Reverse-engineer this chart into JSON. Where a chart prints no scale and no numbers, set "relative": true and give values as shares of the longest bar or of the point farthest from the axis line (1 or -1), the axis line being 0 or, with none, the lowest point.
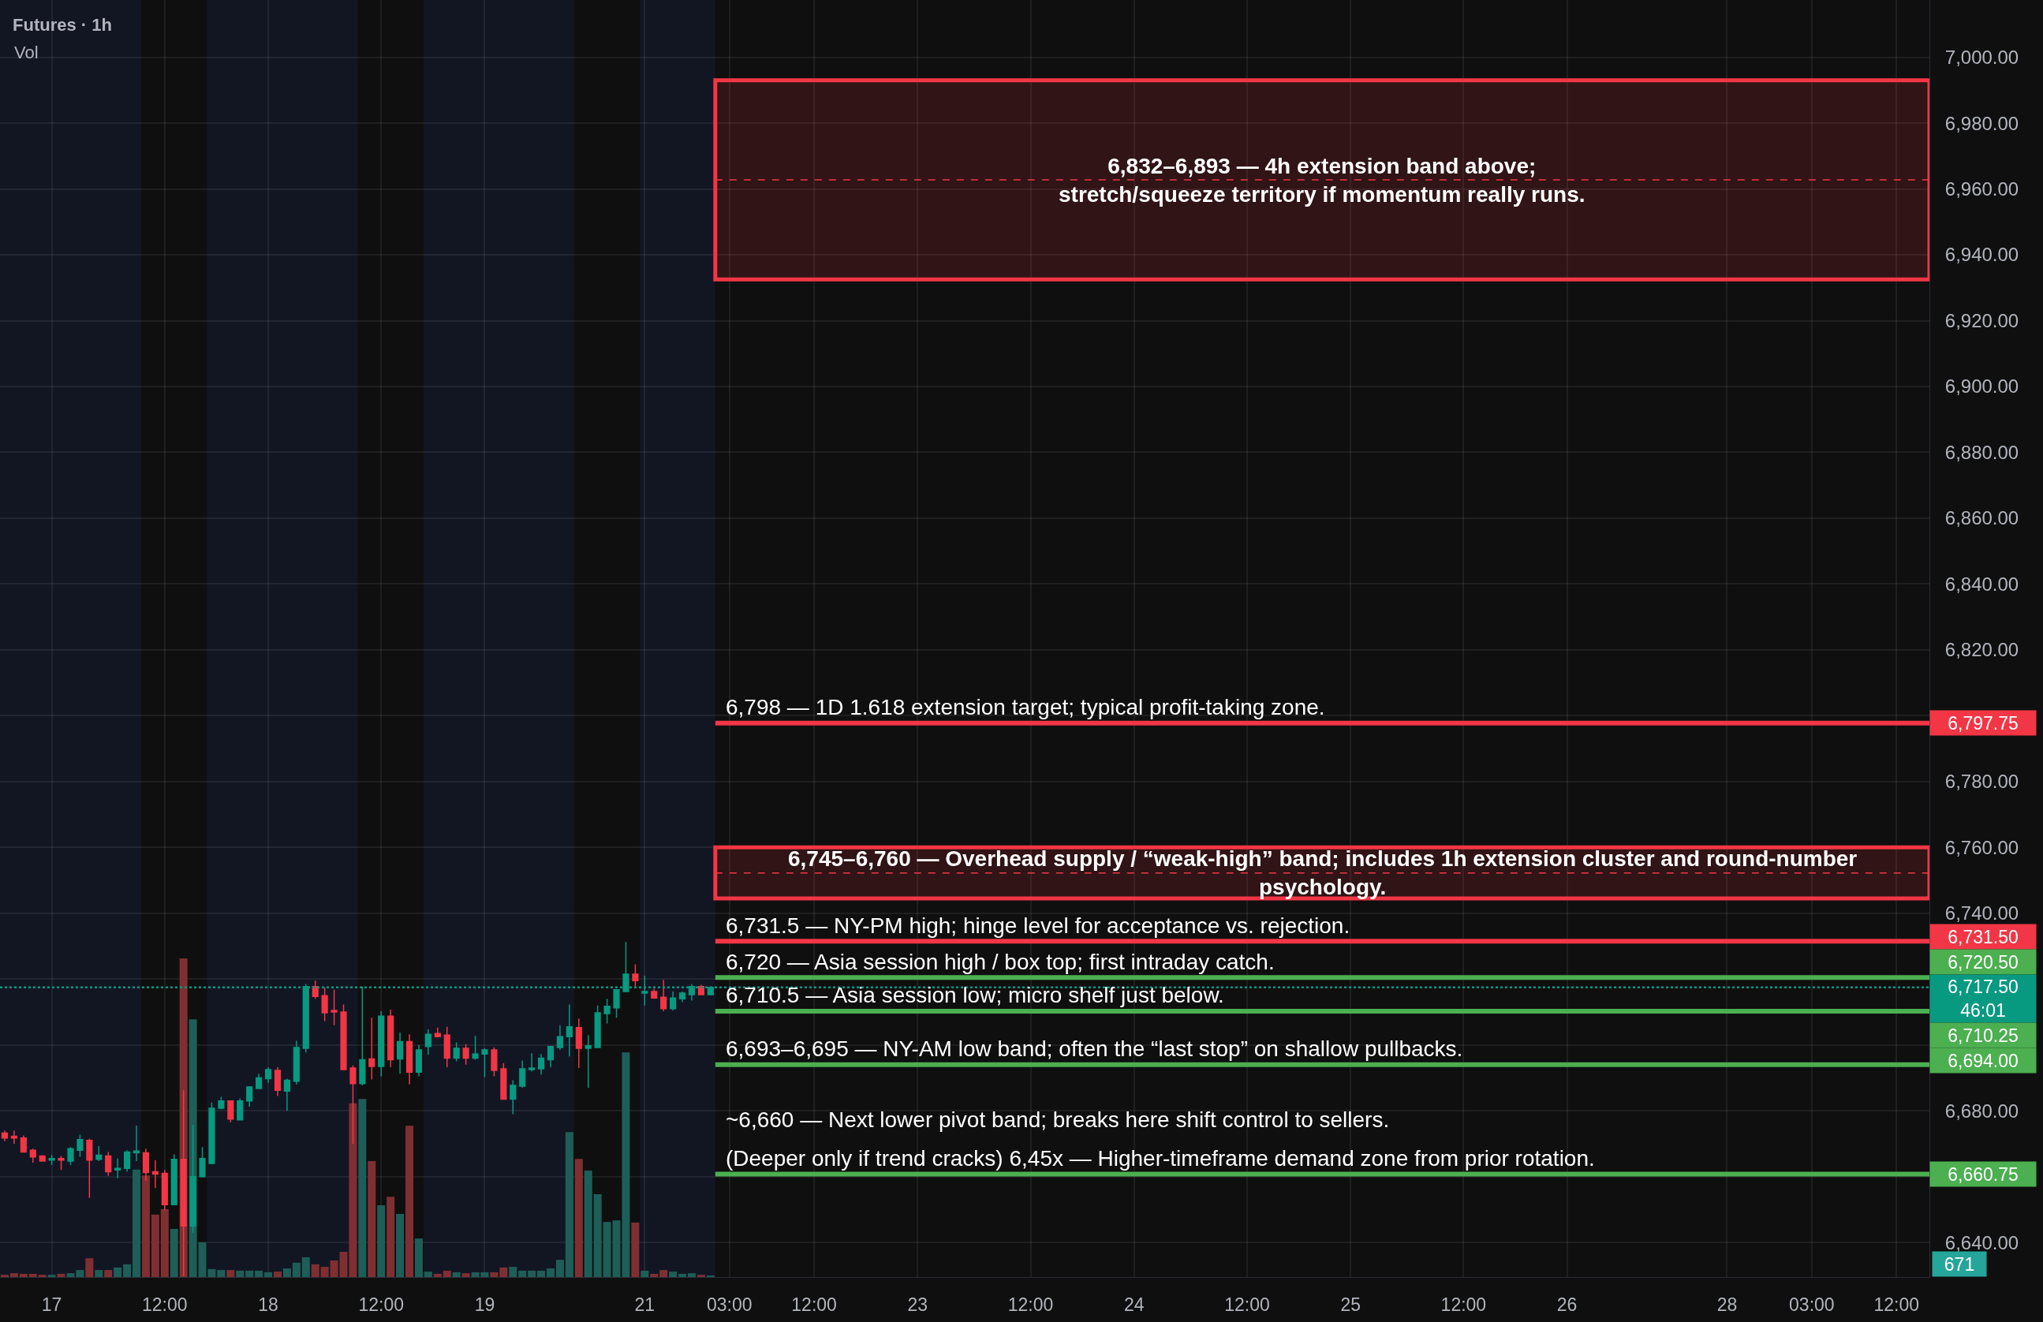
{
  "chart_data": [
    {
      "type": "candlestick",
      "title": "Futures · 1h",
      "categories": [
        null,
        null,
        null,
        null,
        null,
        "17",
        null,
        null,
        null,
        null,
        null,
        null,
        null,
        null,
        null,
        null,
        null,
        "12:00",
        null,
        null,
        null,
        null,
        null,
        null,
        null,
        null,
        null,
        null,
        "18",
        null,
        null,
        null,
        null,
        null,
        null,
        null,
        null,
        null,
        null,
        null,
        "12:00",
        null,
        null,
        null,
        null,
        null,
        null,
        null,
        null,
        null,
        null,
        "19",
        null,
        null,
        null,
        null,
        null,
        null,
        null,
        null,
        null,
        null,
        null,
        null,
        null,
        null,
        null,
        null,
        "21",
        null,
        null,
        null,
        null,
        null,
        null,
        null,
        null,
        "03:00",
        null,
        null,
        null,
        null,
        null,
        null,
        null,
        null,
        "12:00",
        null,
        null,
        null,
        null,
        null,
        null,
        null,
        null,
        null,
        null,
        "23",
        null,
        null,
        null,
        null,
        null,
        null,
        null,
        null,
        null,
        null,
        null,
        "12:00",
        null,
        null,
        null,
        null,
        null,
        null,
        null,
        null,
        null,
        null,
        "24",
        null,
        null,
        null,
        null,
        null,
        null,
        null,
        null,
        null,
        null,
        null,
        "12:00",
        null,
        null,
        null,
        null,
        null,
        null,
        null,
        null,
        null,
        null,
        "25",
        null,
        null,
        null,
        null,
        null,
        null,
        null,
        null,
        null,
        null,
        null,
        "12:00",
        null,
        null,
        null,
        null,
        null,
        null,
        null,
        null,
        null,
        null,
        "26",
        null,
        null,
        null,
        null,
        null,
        null,
        null,
        null,
        null,
        null,
        null,
        null,
        null,
        null,
        null,
        null,
        "28",
        null,
        null,
        null,
        null,
        null,
        null,
        null,
        null,
        "03:00",
        null,
        null,
        null,
        null,
        null,
        null,
        null,
        null,
        "12:00",
        null,
        null,
        null
      ],
      "ohlc": [
        [
          6673.25,
          6674,
          6670.75,
          6671.75
        ],
        [
          6672.25,
          6674,
          6670,
          6671.75
        ],
        [
          6671.75,
          6672.5,
          6667.5,
          6667.5
        ],
        [
          6668,
          6668.5,
          6664.25,
          6666
        ],
        [
          6666.25,
          6666.5,
          6664.75,
          6664.75
        ],
        [
          6665,
          6666.5,
          6663.5,
          6665.5
        ],
        [
          6665.5,
          6666.25,
          6662,
          6665
        ],
        [
          6664.75,
          6669,
          6663.5,
          6668.5
        ],
        [
          6668,
          6672.75,
          6666,
          6671.25
        ],
        [
          6671,
          6671.5,
          6653.5,
          6665
        ],
        [
          6665.25,
          6669.25,
          6664.75,
          6666.5
        ],
        [
          6666.25,
          6667.5,
          6660.25,
          6661.5
        ],
        [
          6662,
          6665.5,
          6659.5,
          6662.5
        ],
        [
          6662.5,
          6668,
          6661.5,
          6667.5
        ],
        [
          6667.25,
          6675.5,
          6664.75,
          6667.75
        ],
        [
          6667.25,
          6668.5,
          6658.75,
          6661.25
        ],
        [
          6661.5,
          6665,
          6656.5,
          6660.75
        ],
        [
          6661,
          6662,
          6649.75,
          6651.5
        ],
        [
          6651.5,
          6666.75,
          6651.5,
          6665.25
        ],
        [
          6665.25,
          6686.25,
          6629.75,
          6645
        ],
        [
          6645,
          6675.75,
          6643,
          6660
        ],
        [
          6660,
          6669,
          6659.75,
          6665.5
        ],
        [
          6664,
          6682.5,
          6663.75,
          6680.75
        ],
        [
          6680.75,
          6684.25,
          6680.5,
          6683
        ],
        [
          6683,
          6683,
          6676.5,
          6677.5
        ],
        [
          6677.25,
          6683.75,
          6677.25,
          6683
        ],
        [
          6683,
          6687.5,
          6681.25,
          6687.25
        ],
        [
          6686.75,
          6691.25,
          6686.75,
          6690
        ],
        [
          6689.75,
          6693.25,
          6688.5,
          6692.5
        ],
        [
          6692.25,
          6693.25,
          6684.5,
          6686.25
        ],
        [
          6686,
          6689.75,
          6680,
          6689.25
        ],
        [
          6689,
          6701.25,
          6688,
          6699.25
        ],
        [
          6699,
          6718.5,
          6697.75,
          6717.75
        ],
        [
          6717.75,
          6719.5,
          6714,
          6714.75
        ],
        [
          6715,
          6717.5,
          6707.25,
          6709.75
        ],
        [
          6710.5,
          6716.75,
          6706,
          6710
        ],
        [
          6710,
          6712.25,
          6692.5,
          6692.5
        ],
        [
          6693,
          6693.75,
          6670,
          6688.25
        ],
        [
          6688.25,
          6717.75,
          6687.75,
          6695.5
        ],
        [
          6695.75,
          6708.25,
          6689.5,
          6693.5
        ],
        [
          6693.5,
          6710.25,
          6690.5,
          6708.75
        ],
        [
          6708.75,
          6710.75,
          6693.25,
          6695.5
        ],
        [
          6695.75,
          6703.75,
          6691.25,
          6701
        ],
        [
          6701,
          6703.25,
          6688,
          6691.75
        ],
        [
          6691.75,
          6700,
          6690.5,
          6698.5
        ],
        [
          6699.5,
          6704.75,
          6697,
          6703.25
        ],
        [
          6703.5,
          6705.25,
          6702.5,
          6702.5
        ],
        [
          6703,
          6705.5,
          6693.25,
          6696
        ],
        [
          6696,
          6700.75,
          6695,
          6699
        ],
        [
          6699,
          6700.25,
          6694,
          6696
        ],
        [
          6696,
          6702.75,
          6695.5,
          6697.25
        ],
        [
          6697.25,
          6699,
          6690.25,
          6698.5
        ],
        [
          6698.5,
          6699.25,
          6690.5,
          6692.25
        ],
        [
          6692.75,
          6694.5,
          6683.5,
          6683.5
        ],
        [
          6683.5,
          6689.25,
          6679,
          6687.75
        ],
        [
          6687.5,
          6695.25,
          6687,
          6692.75
        ],
        [
          6692.5,
          6697.5,
          6692,
          6693
        ],
        [
          6692.75,
          6697.25,
          6691,
          6696
        ],
        [
          6695.5,
          6699.75,
          6693.25,
          6699.5
        ],
        [
          6699.25,
          6706,
          6698.5,
          6702.5
        ],
        [
          6702.5,
          6712.25,
          6696.5,
          6705.5
        ],
        [
          6705.25,
          6708,
          6693,
          6699
        ],
        [
          6699,
          6703,
          6687,
          6699.75
        ],
        [
          6699.25,
          6712,
          6699.25,
          6709.75
        ],
        [
          6709.5,
          6714,
          6706.5,
          6711.75
        ],
        [
          6711.25,
          6716.75,
          6708.25,
          6716.75
        ],
        [
          6716.25,
          6731.25,
          6716,
          6721.5
        ],
        [
          6721.5,
          6724.5,
          6717.75,
          6719.5
        ],
        [
          6715.75,
          6721,
          6712,
          6716.25
        ],
        [
          6716.25,
          6717,
          6714,
          6714.25
        ],
        [
          6714.5,
          6719.75,
          6710.25,
          6711
        ],
        [
          6711,
          6716.25,
          6710.5,
          6714.25
        ],
        [
          6714,
          6716.25,
          6713,
          6715.75
        ],
        [
          6715.25,
          6718.5,
          6713.5,
          6717.75
        ],
        [
          6717.75,
          6718.25,
          6715.25,
          6715.25
        ],
        [
          6715.25,
          6717.5,
          6715.25,
          6717.5
        ],
        null,
        null,
        null,
        null,
        null,
        null,
        null,
        null,
        null,
        null,
        null,
        null,
        null,
        null,
        null,
        null,
        null,
        null,
        null,
        null,
        null,
        null,
        null,
        null,
        null,
        null,
        null,
        null,
        null,
        null,
        null,
        null,
        null,
        null,
        null,
        null,
        null,
        null,
        null,
        null,
        null,
        null,
        null,
        null,
        null,
        null,
        null,
        null,
        null,
        null,
        null,
        null,
        null,
        null,
        null,
        null,
        null,
        null,
        null,
        null,
        null,
        null,
        null,
        null,
        null,
        null,
        null,
        null,
        null,
        null,
        null,
        null,
        null,
        null,
        null,
        null,
        null,
        null,
        null,
        null,
        null,
        null,
        null,
        null,
        null,
        null,
        null,
        null,
        null,
        null,
        null,
        null,
        null,
        null,
        null,
        null,
        null,
        null,
        null,
        null,
        null,
        null,
        null,
        null,
        null,
        null,
        null,
        null,
        null,
        null,
        null,
        null,
        null,
        null,
        null,
        null,
        null,
        null,
        null,
        null,
        null,
        null,
        null,
        null,
        null,
        null,
        null,
        null,
        null
      ],
      "colors": [
        "#f23645",
        "#f23645",
        "#f23645",
        "#f23645",
        "#f23645",
        "#089981",
        "#f23645",
        "#089981",
        "#089981",
        "#f23645",
        "#089981",
        "#f23645",
        "#089981",
        "#089981",
        "#089981",
        "#f23645",
        "#f23645",
        "#f23645",
        "#089981",
        "#f23645",
        "#089981",
        "#089981",
        "#089981",
        "#089981",
        "#f23645",
        "#089981",
        "#089981",
        "#089981",
        "#089981",
        "#f23645",
        "#089981",
        "#089981",
        "#089981",
        "#f23645",
        "#f23645",
        "#f23645",
        "#f23645",
        "#f23645",
        "#089981",
        "#f23645",
        "#089981",
        "#f23645",
        "#089981",
        "#f23645",
        "#089981",
        "#089981",
        "#f23645",
        "#f23645",
        "#089981",
        "#f23645",
        "#089981",
        "#089981",
        "#f23645",
        "#f23645",
        "#089981",
        "#089981",
        "#089981",
        "#089981",
        "#089981",
        "#089981",
        "#089981",
        "#f23645",
        "#089981",
        "#089981",
        "#089981",
        "#089981",
        "#089981",
        "#f23645",
        "#089981",
        "#f23645",
        "#f23645",
        "#089981",
        "#089981",
        "#089981",
        "#f23645",
        "#089981",
        null,
        null,
        null,
        null,
        null,
        null,
        null,
        null,
        null,
        null,
        null,
        null,
        null,
        null,
        null,
        null,
        null,
        null,
        null,
        null,
        null,
        null,
        null,
        null,
        null,
        null,
        null,
        null,
        null,
        null,
        null,
        null,
        null,
        null,
        null,
        null,
        null,
        null,
        null,
        null,
        null,
        null,
        null,
        null,
        null,
        null,
        null,
        null,
        null,
        null,
        null,
        null,
        null,
        null,
        null,
        null,
        null,
        null,
        null,
        null,
        null,
        null,
        null,
        null,
        null,
        null,
        null,
        null,
        null,
        null,
        null,
        null,
        null,
        null,
        null,
        null,
        null,
        null,
        null,
        null,
        null,
        null,
        null,
        null,
        null,
        null,
        null,
        null,
        null,
        null,
        null,
        null,
        null,
        null,
        null,
        null,
        null,
        null,
        null,
        null,
        null,
        null,
        null,
        null,
        null,
        null,
        null,
        null,
        null,
        null,
        null,
        null,
        null,
        null,
        null,
        null,
        null,
        null,
        null,
        null,
        null,
        null,
        null,
        null,
        null,
        null,
        null,
        null,
        null
      ],
      "ylim": [
        6629.5,
        7017.4
      ],
      "yticks": [
        {
          "value": 6640,
          "label": "6,640.00"
        },
        {
          "value": 6660,
          "label": null
        },
        {
          "value": 6680,
          "label": "6,680.00"
        },
        {
          "value": 6700,
          "label": null
        },
        {
          "value": 6720,
          "label": null
        },
        {
          "value": 6740,
          "label": "6,740.00"
        },
        {
          "value": 6760,
          "label": "6,760.00"
        },
        {
          "value": 6780,
          "label": "6,780.00"
        },
        {
          "value": 6800,
          "label": null
        },
        {
          "value": 6820,
          "label": "6,820.00"
        },
        {
          "value": 6840,
          "label": "6,840.00"
        },
        {
          "value": 6860,
          "label": "6,860.00"
        },
        {
          "value": 6880,
          "label": "6,880.00"
        },
        {
          "value": 6900,
          "label": "6,900.00"
        },
        {
          "value": 6920,
          "label": "6,920.00"
        },
        {
          "value": 6940,
          "label": "6,940.00"
        },
        {
          "value": 6960,
          "label": "6,960.00"
        },
        {
          "value": 6980,
          "label": "6,980.00"
        },
        {
          "value": 7000,
          "label": "7,000.00"
        }
      ],
      "grid": true,
      "bands": [
        {
          "axis": "y",
          "from": 6932.5,
          "to": 6993,
          "color": "#f23645",
          "label": "6,832–6,893 — 4h extension band above;\nstretch/squeeze territory if momentum really runs."
        },
        {
          "axis": "y",
          "from": 6744.5,
          "to": 6760,
          "color": "#f23645",
          "label": "6,745–6,760 — Overhead supply / “weak-high” band; includes 1h extension cluster and round-number\npsychology."
        }
      ],
      "ref_lines": [
        {
          "axis": "y",
          "value": 6962.75,
          "color": "#f23645",
          "line_style": "dashed"
        },
        {
          "axis": "y",
          "value": 6752.25,
          "color": "#f23645",
          "line_style": "dashed"
        },
        {
          "axis": "y",
          "value": 6797.75,
          "label": "6,797.75",
          "color": "#f23645",
          "line_style": "solid"
        },
        {
          "axis": "y",
          "value": 6731.5,
          "label": "6,731.50",
          "color": "#f23645",
          "line_style": "solid"
        },
        {
          "axis": "y",
          "value": 6720.5,
          "label": "6,720.50",
          "color": "#4caf50",
          "line_style": "solid"
        },
        {
          "axis": "y",
          "value": 6717.5,
          "label": "6,717.50\n46:01",
          "color": "#089981",
          "line_style": "dotted"
        },
        {
          "axis": "y",
          "value": 6710.25,
          "label": "6,710.25",
          "color": "#4caf50",
          "line_style": "solid"
        },
        {
          "axis": "y",
          "value": 6694,
          "label": "6,694.00",
          "color": "#4caf50",
          "line_style": "solid"
        },
        {
          "axis": "y",
          "value": 6660.75,
          "label": "6,660.75",
          "color": "#4caf50",
          "line_style": "solid"
        }
      ],
      "annotations": [
        {
          "text": "6,798 — 1D 1.618 extension target; typical profit-taking zone.",
          "y": 6797.75
        },
        {
          "text": "6,731.5 — NY-PM high; hinge level for acceptance vs. rejection.",
          "y": 6731.5
        },
        {
          "text": "6,720 — Asia session high / box top; first intraday catch.",
          "y": 6720.5
        },
        {
          "text": "6,710.5 — Asia session low; micro shelf just below.",
          "y": 6710.25
        },
        {
          "text": "6,693–6,695 — NY-AM low band; often the “last stop” on shallow pullbacks.",
          "y": 6694
        },
        "~6,660 — Next lower pivot band; breaks here shift control to sellers.",
        {
          "text": "(Deeper only if trend cracks) 6,45x — Higher-timeframe demand zone from prior rotation.",
          "y": 6660.75
        }
      ]
    },
    {
      "type": "bar",
      "title": "Vol",
      "relative": true,
      "values": [
        0.007,
        0.012,
        0.01,
        0.01,
        0.007,
        0.007,
        0.01,
        0.012,
        0.022,
        0.059,
        0.022,
        0.022,
        0.03,
        0.04,
        0.337,
        0.319,
        0.196,
        0.213,
        0.151,
        1,
        0.809,
        0.109,
        0.025,
        0.022,
        0.022,
        0.02,
        0.02,
        0.02,
        0.015,
        0.017,
        0.027,
        0.045,
        0.062,
        0.04,
        0.032,
        0.052,
        0.079,
        0.545,
        0.559,
        0.364,
        0.225,
        0.252,
        0.198,
        0.475,
        0.121,
        0.017,
        0.01,
        0.02,
        0.015,
        0.012,
        0.015,
        0.015,
        0.015,
        0.03,
        0.032,
        0.02,
        0.02,
        0.02,
        0.027,
        0.054,
        0.455,
        0.371,
        0.334,
        0.26,
        0.173,
        0.178,
        0.705,
        0.171,
        0.02,
        0.01,
        0.022,
        0.017,
        0.01,
        0.012,
        0.007,
        0.003,
        null,
        null,
        null,
        null,
        null,
        null,
        null,
        null,
        null,
        null,
        null,
        null,
        null,
        null,
        null,
        null,
        null,
        null,
        null,
        null,
        null,
        null,
        null,
        null,
        null,
        null,
        null,
        null,
        null,
        null,
        null,
        null,
        null,
        null,
        null,
        null,
        null,
        null,
        null,
        null,
        null,
        null,
        null,
        null,
        null,
        null,
        null,
        null,
        null,
        null,
        null,
        null,
        null,
        null,
        null,
        null,
        null,
        null,
        null,
        null,
        null,
        null,
        null,
        null,
        null,
        null,
        null,
        null,
        null,
        null,
        null,
        null,
        null,
        null,
        null,
        null,
        null,
        null,
        null,
        null,
        null,
        null,
        null,
        null,
        null,
        null,
        null,
        null,
        null,
        null,
        null,
        null,
        null,
        null,
        null,
        null,
        null,
        null,
        null,
        null,
        null,
        null,
        null,
        null,
        null,
        null,
        null,
        null,
        null,
        null,
        null,
        null,
        null,
        null,
        null,
        null,
        null,
        null,
        null,
        null,
        null,
        null,
        null,
        null,
        null,
        null,
        null,
        null,
        null
      ],
      "colors": [
        "#7f2f32",
        "#7f2f32",
        "#7f2f32",
        "#7f2f32",
        "#7f2f32",
        "#1e5e58",
        "#7f2f32",
        "#1e5e58",
        "#1e5e58",
        "#7f2f32",
        "#1e5e58",
        "#7f2f32",
        "#1e5e58",
        "#1e5e58",
        "#1e5e58",
        "#7f2f32",
        "#7f2f32",
        "#7f2f32",
        "#1e5e58",
        "#7f2f32",
        "#1e5e58",
        "#1e5e58",
        "#1e5e58",
        "#1e5e58",
        "#7f2f32",
        "#1e5e58",
        "#1e5e58",
        "#1e5e58",
        "#1e5e58",
        "#7f2f32",
        "#1e5e58",
        "#1e5e58",
        "#1e5e58",
        "#7f2f32",
        "#7f2f32",
        "#7f2f32",
        "#7f2f32",
        "#7f2f32",
        "#1e5e58",
        "#7f2f32",
        "#1e5e58",
        "#7f2f32",
        "#1e5e58",
        "#7f2f32",
        "#1e5e58",
        "#1e5e58",
        "#7f2f32",
        "#7f2f32",
        "#1e5e58",
        "#7f2f32",
        "#1e5e58",
        "#1e5e58",
        "#7f2f32",
        "#7f2f32",
        "#1e5e58",
        "#1e5e58",
        "#1e5e58",
        "#1e5e58",
        "#1e5e58",
        "#1e5e58",
        "#1e5e58",
        "#7f2f32",
        "#1e5e58",
        "#1e5e58",
        "#1e5e58",
        "#1e5e58",
        "#1e5e58",
        "#7f2f32",
        "#1e5e58",
        "#7f2f32",
        "#7f2f32",
        "#1e5e58",
        "#1e5e58",
        "#1e5e58",
        "#7f2f32",
        "#1e5e58",
        null,
        null,
        null,
        null,
        null,
        null,
        null,
        null,
        null,
        null,
        null,
        null,
        null,
        null,
        null,
        null,
        null,
        null,
        null,
        null,
        null,
        null,
        null,
        null,
        null,
        null,
        null,
        null,
        null,
        null,
        null,
        null,
        null,
        null,
        null,
        null,
        null,
        null,
        null,
        null,
        null,
        null,
        null,
        null,
        null,
        null,
        null,
        null,
        null,
        null,
        null,
        null,
        null,
        null,
        null,
        null,
        null,
        null,
        null,
        null,
        null,
        null,
        null,
        null,
        null,
        null,
        null,
        null,
        null,
        null,
        null,
        null,
        null,
        null,
        null,
        null,
        null,
        null,
        null,
        null,
        null,
        null,
        null,
        null,
        null,
        null,
        null,
        null,
        null,
        null,
        null,
        null,
        null,
        null,
        null,
        null,
        null,
        null,
        null,
        null,
        null,
        null,
        null,
        null,
        null,
        null,
        null,
        null,
        null,
        null,
        null,
        null,
        null,
        null,
        null,
        null,
        null,
        null,
        null,
        null,
        null,
        null,
        null,
        null,
        null,
        null,
        null,
        null,
        null
      ],
      "annotations": [
        "671"
      ]
    }
  ]
}
